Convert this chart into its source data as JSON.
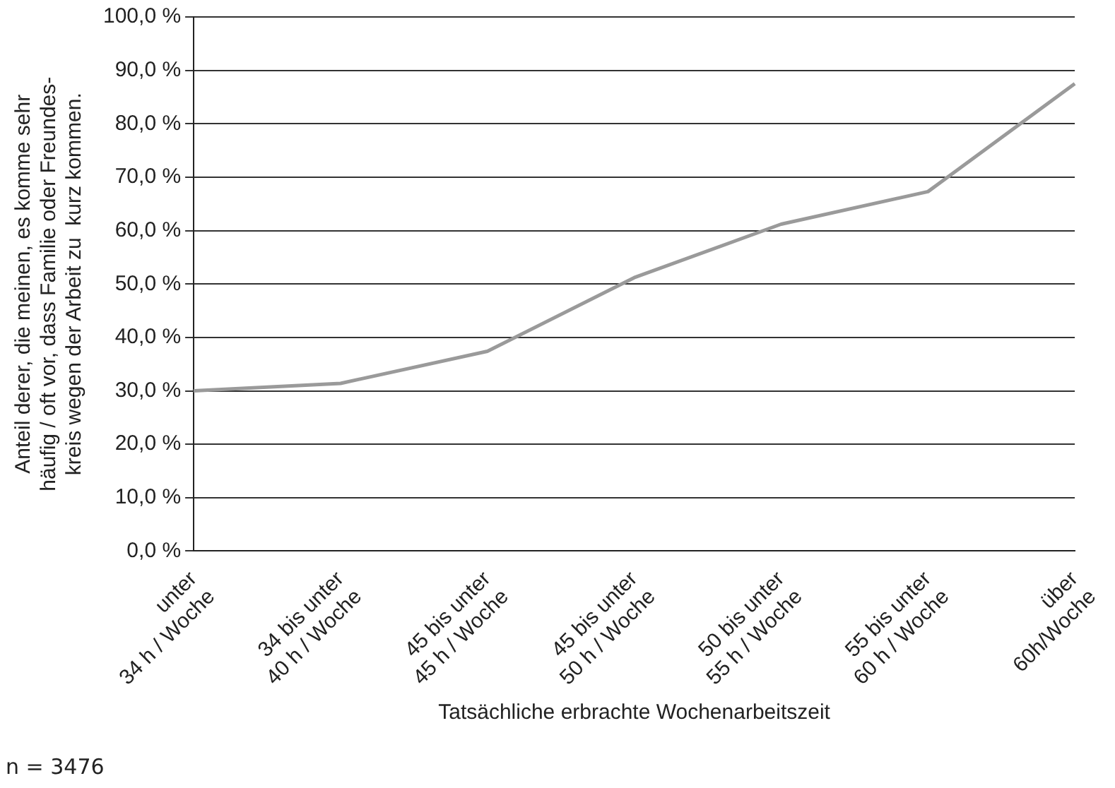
{
  "chart_data": {
    "type": "line",
    "categories": [
      "unter\n34 h / Woche",
      "34 bis unter\n40 h / Woche",
      "45 bis unter\n45 h / Woche",
      "45 bis unter\n50 h / Woche",
      "50 bis unter\n55 h / Woche",
      "55 bis unter\n60 h / Woche",
      "über\n60h/Woche"
    ],
    "series": [
      {
        "color": "#9a9a9a",
        "values": [
          30.0,
          31.4,
          37.4,
          51.2,
          61.2,
          67.3,
          87.5
        ]
      }
    ],
    "xlabel": "Tatsächliche erbrachte Wochenarbeitszeit",
    "ylabel": "Anteil derer, die meinen, es komme sehr\nhäufig / oft vor, dass Familie oder Freundes-\nkreis wegen der Arbeit zu  kurz kommen.",
    "ylim": [
      0,
      100
    ],
    "yticks": [
      {
        "value": 0,
        "label": "0,0 %"
      },
      {
        "value": 10,
        "label": "10,0 %"
      },
      {
        "value": 20,
        "label": "20,0 %"
      },
      {
        "value": 30,
        "label": "30,0 %"
      },
      {
        "value": 40,
        "label": "40,0 %"
      },
      {
        "value": 50,
        "label": "50,0 %"
      },
      {
        "value": 60,
        "label": "60,0 %"
      },
      {
        "value": 70,
        "label": "70,0 %"
      },
      {
        "value": 80,
        "label": "80,0 %"
      },
      {
        "value": 90,
        "label": "90,0 %"
      },
      {
        "value": 100,
        "label": "100,0 %"
      }
    ],
    "grid": "y",
    "legend": false,
    "marker": "none",
    "line_style": "solid",
    "annotations": [
      "n = 3476"
    ]
  }
}
